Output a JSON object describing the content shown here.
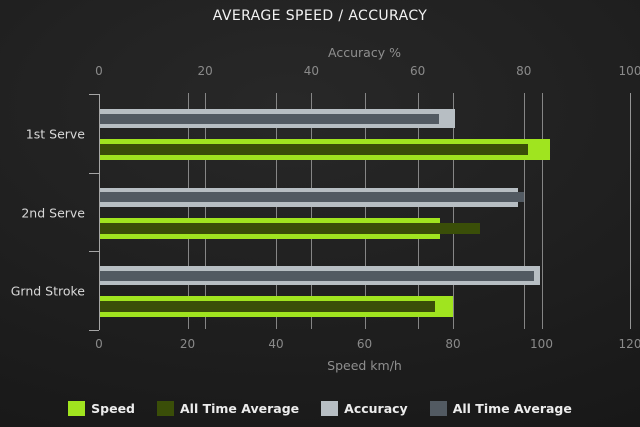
{
  "title": "AVERAGE SPEED / ACCURACY",
  "colors": {
    "background_center": "#282828",
    "background_edge": "#141414",
    "title_text": "#f3f3f3",
    "axis_text": "#8a8a8a",
    "category_text": "#d8d8d8",
    "legend_text": "#ececec",
    "gridline": "#989898",
    "speed": "#a0e41f",
    "speed_all_time_average": "#3a4e08",
    "accuracy": "#b7bec3",
    "accuracy_all_time_average": "#525a62"
  },
  "chart_data": {
    "type": "bar",
    "orientation": "horizontal",
    "title": "AVERAGE SPEED / ACCURACY",
    "categories": [
      "1st Serve",
      "2nd Serve",
      "Grnd Stroke"
    ],
    "top_axis": {
      "label": "Accuracy %",
      "min": 0,
      "max": 100,
      "ticks": [
        0,
        20,
        40,
        60,
        80,
        100
      ]
    },
    "bottom_axis": {
      "label": "Speed km/h",
      "min": 0,
      "max": 120,
      "ticks": [
        0,
        20,
        40,
        60,
        80,
        100,
        120
      ]
    },
    "grid": "on",
    "legend_position": "bottom",
    "series": [
      {
        "name": "Speed",
        "axis": "bottom",
        "role": "current",
        "color": "#a0e41f",
        "values": [
          102,
          77,
          80
        ]
      },
      {
        "name": "All Time Average",
        "axis": "bottom",
        "role": "average",
        "color": "#3a4e08",
        "values": [
          97,
          86,
          76
        ]
      },
      {
        "name": "Accuracy",
        "axis": "top",
        "role": "current",
        "color": "#b7bec3",
        "values": [
          67,
          79,
          83
        ]
      },
      {
        "name": "All Time Average",
        "axis": "top",
        "role": "average",
        "color": "#525a62",
        "values": [
          64,
          80,
          82
        ]
      }
    ]
  }
}
